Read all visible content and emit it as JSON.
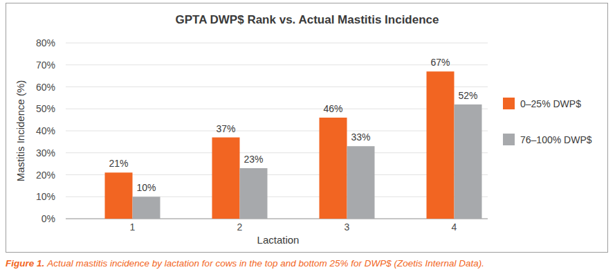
{
  "chart_data": {
    "type": "bar",
    "title": "GPTA DWP$ Rank vs. Actual Mastitis Incidence",
    "x_label": "Lactation",
    "y_label": "Mastitis Incidence (%)",
    "caption": {
      "label": "Figure 1.",
      "text": "Actual mastitis incidence by lactation for cows in the top and bottom 25% for DWP$ (Zoetis Internal Data)."
    },
    "categories": [
      "1",
      "2",
      "3",
      "4"
    ],
    "series": [
      {
        "name": "0–25% DWP$",
        "color": "#f26522",
        "values": [
          21,
          37,
          46,
          67
        ],
        "value_labels": [
          "21%",
          "37%",
          "46%",
          "67%"
        ]
      },
      {
        "name": "76–100% DWP$",
        "color": "#a7a9ac",
        "values": [
          10,
          23,
          33,
          52
        ],
        "value_labels": [
          "10%",
          "23%",
          "33%",
          "52%"
        ]
      }
    ],
    "ylim": [
      0,
      80
    ],
    "yticks": [
      {
        "value": 0,
        "label": "0%"
      },
      {
        "value": 10,
        "label": "10%"
      },
      {
        "value": 20,
        "label": "20%"
      },
      {
        "value": 30,
        "label": "30%"
      },
      {
        "value": 40,
        "label": "40%"
      },
      {
        "value": 50,
        "label": "50%"
      },
      {
        "value": 60,
        "label": "60%"
      },
      {
        "value": 70,
        "label": "70%"
      },
      {
        "value": 80,
        "label": "80%"
      }
    ],
    "grid": true,
    "legend": "right",
    "data_labels": true
  }
}
